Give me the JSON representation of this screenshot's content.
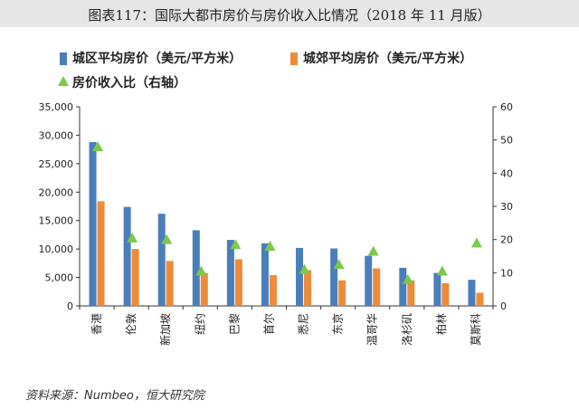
{
  "header": {
    "title": "图表117：国际大都市房价与房价收入比情况（2018 年 11 月版）"
  },
  "footer": {
    "source": "资料来源：Numbeo，恒大研究院"
  },
  "colors": {
    "urban": "#4a7ebb",
    "suburban": "#ed8b3a",
    "ratio": "#7cc84b",
    "title_bg": "#e6e6e6"
  },
  "chart_data": {
    "type": "bar",
    "categories": [
      "香港",
      "伦敦",
      "新加坡",
      "纽约",
      "巴黎",
      "首尔",
      "悉尼",
      "东京",
      "温哥华",
      "洛杉矶",
      "柏林",
      "莫斯科"
    ],
    "series": [
      {
        "name": "城区平均房价（美元/平方米）",
        "type": "bar",
        "axis": "left",
        "color": "#4a7ebb",
        "values": [
          28800,
          17400,
          16200,
          13300,
          11600,
          11000,
          10200,
          10100,
          8800,
          6700,
          5800,
          4600
        ]
      },
      {
        "name": "城郊平均房价（美元/平方米）",
        "type": "bar",
        "axis": "left",
        "color": "#ed8b3a",
        "values": [
          18400,
          10000,
          7900,
          5800,
          8200,
          5400,
          6300,
          4500,
          6600,
          4500,
          4000,
          2300
        ]
      },
      {
        "name": "房价收入比（右轴）",
        "type": "scatter",
        "axis": "right",
        "color": "#7cc84b",
        "values": [
          48,
          20.5,
          20,
          10.5,
          18.5,
          18,
          11,
          12.5,
          16.5,
          8,
          10.5,
          19
        ]
      }
    ],
    "y_left": {
      "min": 0,
      "max": 35000,
      "step": 5000,
      "ticks": [
        "0",
        "5,000",
        "10,000",
        "15,000",
        "20,000",
        "25,000",
        "30,000",
        "35,000"
      ]
    },
    "y_right": {
      "min": 0,
      "max": 60,
      "step": 10,
      "ticks": [
        "0",
        "10",
        "20",
        "30",
        "40",
        "50",
        "60"
      ]
    },
    "legend": {
      "position": "top-left",
      "items": [
        "城区平均房价（美元/平方米）",
        "城郊平均房价（美元/平方米）",
        "房价收入比（右轴）"
      ]
    },
    "grid": false
  }
}
